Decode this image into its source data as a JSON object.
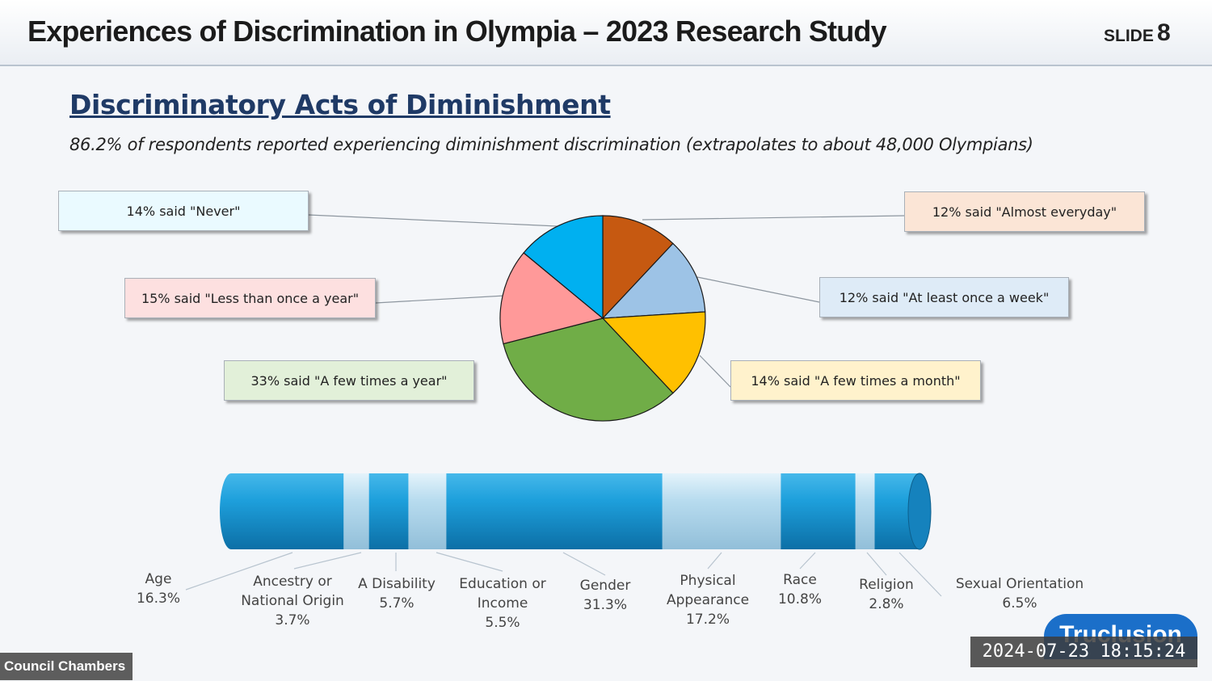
{
  "header": {
    "title": "Experiences of Discrimination in Olympia – 2023 Research Study",
    "slide_label": "SLIDE",
    "slide_number": "8"
  },
  "section": {
    "title": "Discriminatory Acts of Diminishment",
    "subtitle": "86.2% of respondents reported experiencing diminishment discrimination (extrapolates to about 48,000 Olympians)"
  },
  "chart_data": [
    {
      "type": "pie",
      "slices": [
        {
          "label": "12% said \"Almost everyday\"",
          "value": 12,
          "color": "#c65911",
          "box_color": "#fbe5d6"
        },
        {
          "label": "12% said \"At least once a week\"",
          "value": 12,
          "color": "#9dc3e6",
          "box_color": "#deebf7"
        },
        {
          "label": "14% said \"A few times a month\"",
          "value": 14,
          "color": "#ffc000",
          "box_color": "#fff2cc"
        },
        {
          "label": "33% said \"A few times a year\"",
          "value": 33,
          "color": "#70ad47",
          "box_color": "#e2f0d9"
        },
        {
          "label": "15% said \"Less than once a year\"",
          "value": 15,
          "color": "#ff9999",
          "box_color": "#fde0e0"
        },
        {
          "label": "14% said \"Never\"",
          "value": 14,
          "color": "#00b0f0",
          "box_color": "#eafaff"
        }
      ]
    },
    {
      "type": "bar",
      "stacked": true,
      "orientation": "horizontal",
      "categories": [
        {
          "name": "Age",
          "value": "16.3%",
          "v": 16.3
        },
        {
          "name": "Ancestry or National Origin",
          "value": "3.7%",
          "v": 3.7
        },
        {
          "name": "A Disability",
          "value": "5.7%",
          "v": 5.7
        },
        {
          "name": "Education or Income",
          "value": "5.5%",
          "v": 5.5
        },
        {
          "name": "Gender",
          "value": "31.3%",
          "v": 31.3
        },
        {
          "name": "Physical Appearance",
          "value": "17.2%",
          "v": 17.2
        },
        {
          "name": "Race",
          "value": "10.8%",
          "v": 10.8
        },
        {
          "name": "Religion",
          "value": "2.8%",
          "v": 2.8
        },
        {
          "name": "Sexual Orientation",
          "value": "6.5%",
          "v": 6.5
        }
      ],
      "colors": [
        "#1ea0dc",
        "#b8dcef"
      ]
    }
  ],
  "category_label_lines": [
    [
      "Age",
      "16.3%"
    ],
    [
      "Ancestry or",
      "National Origin",
      "3.7%"
    ],
    [
      "A Disability",
      "5.7%"
    ],
    [
      "Education or",
      "Income",
      "5.5%"
    ],
    [
      "Gender",
      "31.3%"
    ],
    [
      "Physical",
      "Appearance",
      "17.2%"
    ],
    [
      "Race",
      "10.8%"
    ],
    [
      "Religion",
      "2.8%"
    ],
    [
      "Sexual Orientation",
      "6.5%"
    ]
  ],
  "footer": {
    "logo_text": "Truclusion",
    "timestamp": "2024-07-23  18:15:24",
    "room_label": "Council Chambers"
  }
}
